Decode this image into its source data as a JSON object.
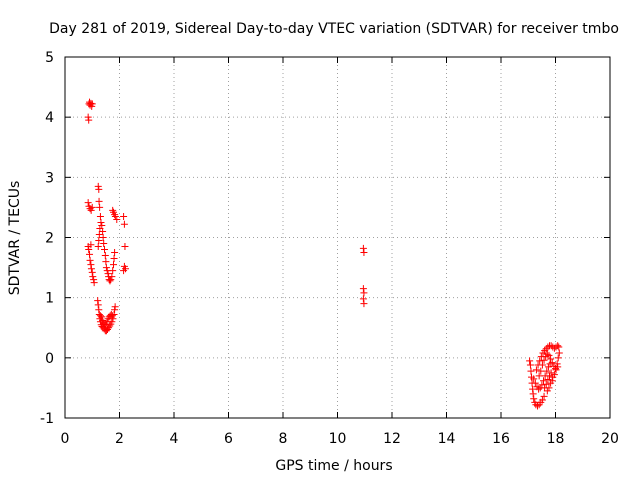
{
  "chart_data": {
    "type": "scatter",
    "title": "Day 281 of 2019, Sidereal Day-to-day VTEC variation (SDTVAR) for receiver tmbo",
    "xlabel": "GPS time / hours",
    "ylabel": "SDTVAR / TECUs",
    "xlim": [
      0,
      20
    ],
    "ylim": [
      -1,
      5
    ],
    "xticks": [
      "0",
      "2",
      "4",
      "6",
      "8",
      "10",
      "12",
      "14",
      "16",
      "18",
      "20"
    ],
    "yticks": [
      "-1",
      "0",
      "1",
      "2",
      "3",
      "4",
      "5"
    ],
    "grid": true,
    "marker": "+",
    "color": "#ff0000",
    "series": [
      {
        "name": "SDTVAR",
        "points": [
          [
            0.85,
            4.0
          ],
          [
            0.87,
            3.95
          ],
          [
            0.88,
            4.22
          ],
          [
            0.9,
            4.25
          ],
          [
            0.92,
            4.2
          ],
          [
            0.95,
            4.23
          ],
          [
            0.98,
            4.18
          ],
          [
            1.0,
            4.22
          ],
          [
            0.85,
            2.58
          ],
          [
            0.88,
            2.52
          ],
          [
            0.92,
            2.48
          ],
          [
            0.96,
            2.45
          ],
          [
            1.0,
            2.5
          ],
          [
            0.85,
            1.85
          ],
          [
            0.87,
            1.8
          ],
          [
            0.9,
            1.72
          ],
          [
            0.92,
            1.62
          ],
          [
            0.95,
            1.55
          ],
          [
            0.97,
            1.48
          ],
          [
            1.0,
            1.42
          ],
          [
            1.02,
            1.35
          ],
          [
            1.05,
            1.3
          ],
          [
            1.07,
            1.25
          ],
          [
            0.95,
            1.88
          ],
          [
            1.22,
            2.85
          ],
          [
            1.24,
            2.8
          ],
          [
            1.25,
            2.6
          ],
          [
            1.27,
            2.5
          ],
          [
            1.3,
            2.35
          ],
          [
            1.32,
            2.25
          ],
          [
            1.28,
            2.15
          ],
          [
            1.26,
            2.05
          ],
          [
            1.24,
            1.95
          ],
          [
            1.22,
            1.85
          ],
          [
            1.35,
            2.2
          ],
          [
            1.38,
            2.1
          ],
          [
            1.4,
            2.0
          ],
          [
            1.42,
            1.9
          ],
          [
            1.45,
            1.8
          ],
          [
            1.48,
            1.7
          ],
          [
            1.5,
            1.6
          ],
          [
            1.52,
            1.5
          ],
          [
            1.55,
            1.45
          ],
          [
            1.58,
            1.4
          ],
          [
            1.6,
            1.35
          ],
          [
            1.62,
            1.3
          ],
          [
            1.65,
            1.28
          ],
          [
            1.68,
            1.3
          ],
          [
            1.72,
            1.35
          ],
          [
            1.75,
            1.45
          ],
          [
            1.78,
            1.55
          ],
          [
            1.8,
            1.65
          ],
          [
            1.82,
            1.75
          ],
          [
            1.75,
            2.45
          ],
          [
            1.78,
            2.42
          ],
          [
            1.82,
            2.38
          ],
          [
            1.85,
            2.35
          ],
          [
            1.9,
            2.3
          ],
          [
            2.15,
            2.35
          ],
          [
            2.18,
            2.22
          ],
          [
            2.2,
            1.85
          ],
          [
            2.18,
            1.52
          ],
          [
            2.22,
            1.48
          ],
          [
            2.15,
            1.45
          ],
          [
            1.2,
            0.95
          ],
          [
            1.22,
            0.88
          ],
          [
            1.24,
            0.8
          ],
          [
            1.26,
            0.72
          ],
          [
            1.28,
            0.65
          ],
          [
            1.3,
            0.6
          ],
          [
            1.33,
            0.55
          ],
          [
            1.36,
            0.52
          ],
          [
            1.4,
            0.5
          ],
          [
            1.44,
            0.48
          ],
          [
            1.48,
            0.45
          ],
          [
            1.52,
            0.45
          ],
          [
            1.56,
            0.47
          ],
          [
            1.6,
            0.5
          ],
          [
            1.64,
            0.53
          ],
          [
            1.68,
            0.56
          ],
          [
            1.72,
            0.6
          ],
          [
            1.76,
            0.65
          ],
          [
            1.8,
            0.72
          ],
          [
            1.82,
            0.8
          ],
          [
            1.84,
            0.85
          ],
          [
            1.3,
            0.7
          ],
          [
            1.34,
            0.68
          ],
          [
            1.38,
            0.62
          ],
          [
            1.42,
            0.58
          ],
          [
            1.46,
            0.55
          ],
          [
            1.5,
            0.56
          ],
          [
            1.54,
            0.6
          ],
          [
            1.58,
            0.65
          ],
          [
            1.62,
            0.68
          ],
          [
            1.66,
            0.7
          ],
          [
            1.7,
            0.72
          ],
          [
            1.74,
            0.7
          ],
          [
            10.95,
            1.82
          ],
          [
            10.97,
            1.75
          ],
          [
            10.95,
            1.15
          ],
          [
            10.97,
            1.08
          ],
          [
            10.95,
            0.98
          ],
          [
            10.97,
            0.9
          ],
          [
            17.05,
            -0.05
          ],
          [
            17.08,
            -0.12
          ],
          [
            17.1,
            -0.22
          ],
          [
            17.12,
            -0.32
          ],
          [
            17.14,
            -0.42
          ],
          [
            17.16,
            -0.52
          ],
          [
            17.18,
            -0.6
          ],
          [
            17.2,
            -0.68
          ],
          [
            17.24,
            -0.74
          ],
          [
            17.28,
            -0.78
          ],
          [
            17.34,
            -0.8
          ],
          [
            17.4,
            -0.78
          ],
          [
            17.46,
            -0.74
          ],
          [
            17.52,
            -0.7
          ],
          [
            17.58,
            -0.64
          ],
          [
            17.2,
            -0.35
          ],
          [
            17.26,
            -0.42
          ],
          [
            17.32,
            -0.48
          ],
          [
            17.38,
            -0.52
          ],
          [
            17.44,
            -0.5
          ],
          [
            17.5,
            -0.45
          ],
          [
            17.56,
            -0.38
          ],
          [
            17.62,
            -0.3
          ],
          [
            17.68,
            -0.22
          ],
          [
            17.74,
            -0.15
          ],
          [
            17.8,
            -0.1
          ],
          [
            17.3,
            -0.2
          ],
          [
            17.36,
            -0.12
          ],
          [
            17.42,
            -0.05
          ],
          [
            17.48,
            0.02
          ],
          [
            17.54,
            0.08
          ],
          [
            17.6,
            0.12
          ],
          [
            17.66,
            0.15
          ],
          [
            17.72,
            0.18
          ],
          [
            17.78,
            0.2
          ],
          [
            17.84,
            0.2
          ],
          [
            17.9,
            0.18
          ],
          [
            17.96,
            0.16
          ],
          [
            18.02,
            0.18
          ],
          [
            18.08,
            0.2
          ],
          [
            18.12,
            0.18
          ],
          [
            17.4,
            -0.3
          ],
          [
            17.46,
            -0.22
          ],
          [
            17.52,
            -0.12
          ],
          [
            17.58,
            -0.04
          ],
          [
            17.64,
            0.02
          ],
          [
            17.7,
            0.06
          ],
          [
            17.76,
            0.04
          ],
          [
            17.82,
            -0.02
          ],
          [
            17.88,
            -0.08
          ],
          [
            17.94,
            -0.14
          ],
          [
            18.0,
            -0.18
          ],
          [
            18.06,
            -0.1
          ],
          [
            18.1,
            0.0
          ],
          [
            18.14,
            0.08
          ],
          [
            17.6,
            -0.5
          ],
          [
            17.66,
            -0.44
          ],
          [
            17.72,
            -0.36
          ],
          [
            17.78,
            -0.3
          ],
          [
            17.84,
            -0.25
          ],
          [
            17.9,
            -0.32
          ],
          [
            17.96,
            -0.28
          ],
          [
            18.02,
            -0.2
          ],
          [
            18.08,
            -0.15
          ],
          [
            17.7,
            -0.55
          ],
          [
            17.76,
            -0.5
          ],
          [
            17.82,
            -0.42
          ],
          [
            17.88,
            -0.38
          ]
        ]
      }
    ]
  }
}
